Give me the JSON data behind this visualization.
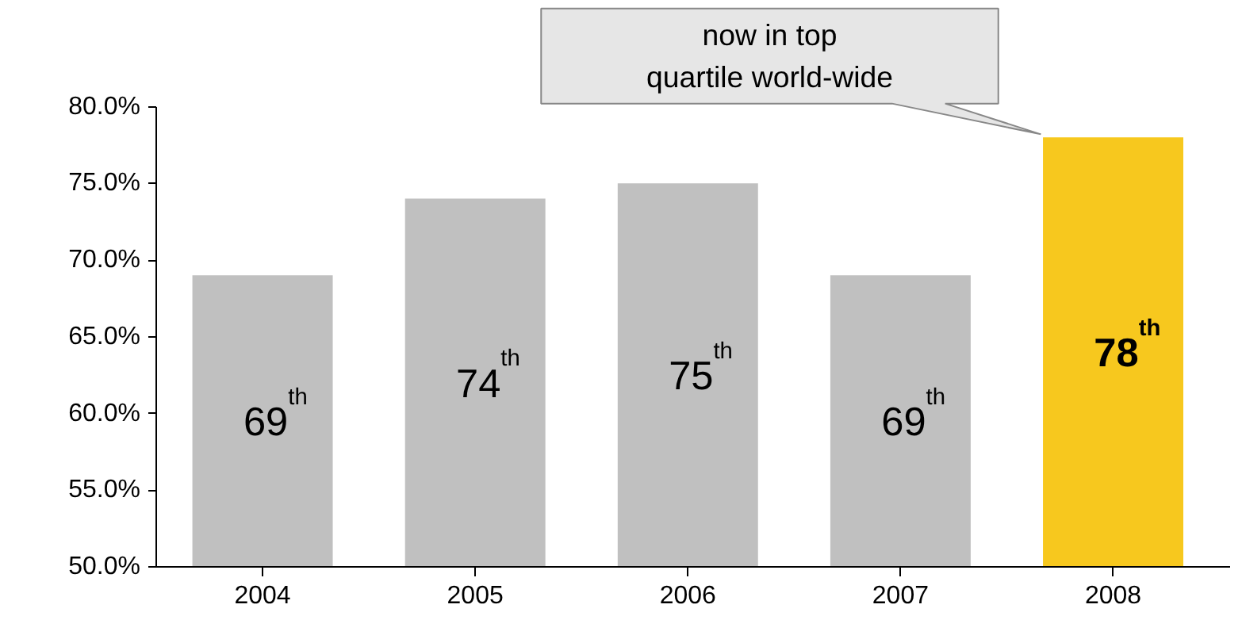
{
  "chart_data": {
    "type": "bar",
    "categories": [
      "2004",
      "2005",
      "2006",
      "2007",
      "2008"
    ],
    "values": [
      69,
      74,
      75,
      69,
      78
    ],
    "colors": [
      "#c0c0c0",
      "#c0c0c0",
      "#c0c0c0",
      "#c0c0c0",
      "#f7c81e"
    ],
    "value_labels": [
      "69$^{th}$",
      "74$^{th}$",
      "75$^{th}$",
      "69$^{th}$",
      "78$^{th}$"
    ],
    "ylim": [
      50,
      80
    ],
    "yticks": [
      {
        "value": 50,
        "label": "50.0%"
      },
      {
        "value": 55,
        "label": "55.0%"
      },
      {
        "value": 60,
        "label": "60.0%"
      },
      {
        "value": 65,
        "label": "65.0%"
      },
      {
        "value": 70,
        "label": "70.0%"
      },
      {
        "value": 75,
        "label": "75.0%"
      },
      {
        "value": 80,
        "label": "80.0%"
      }
    ],
    "annotations": [
      "now in top\nquartile world-wide"
    ],
    "grid": false
  }
}
